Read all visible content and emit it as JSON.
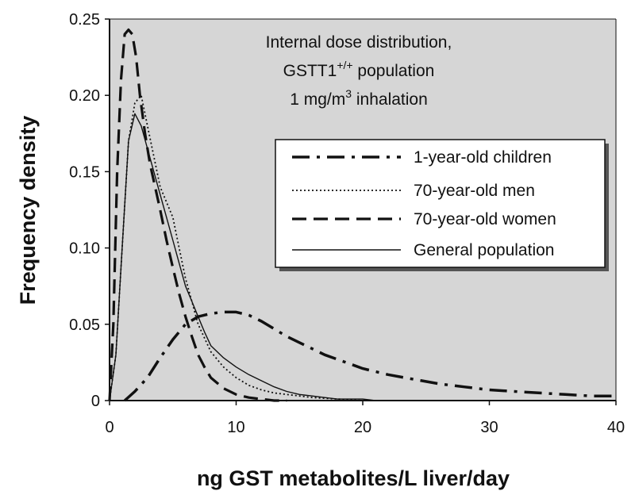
{
  "chart_data": {
    "type": "line",
    "annotation": {
      "line1": "Internal dose distribution,",
      "line2_base": "GSTT1",
      "line2_sup": "+/+",
      "line2_rest": " population",
      "line3_base": "1 mg/m",
      "line3_sup": "3",
      "line3_rest": " inhalation"
    },
    "xlabel": "ng GST metabolites/L liver/day",
    "ylabel": "Frequency density",
    "xlim": [
      0,
      40
    ],
    "ylim": [
      0,
      0.25
    ],
    "xticks": [
      0,
      10,
      20,
      30,
      40
    ],
    "xtick_labels": [
      "0",
      "10",
      "20",
      "30",
      "40"
    ],
    "yticks": [
      0,
      0.05,
      0.1,
      0.15,
      0.2,
      0.25
    ],
    "ytick_labels": [
      "0",
      "0.05",
      "0.10",
      "0.15",
      "0.20",
      "0.25"
    ],
    "legend_position": "right",
    "series": [
      {
        "name": "1-year-old children",
        "style": "dash-dot",
        "x": [
          1.2,
          2,
          3,
          4,
          5,
          6,
          7,
          8,
          9,
          10,
          11,
          12,
          13,
          14,
          15,
          16,
          17,
          18,
          19,
          20,
          22,
          24,
          26,
          28,
          30,
          32,
          34,
          36,
          38,
          40
        ],
        "y": [
          0.0,
          0.006,
          0.015,
          0.028,
          0.04,
          0.05,
          0.055,
          0.057,
          0.058,
          0.058,
          0.056,
          0.052,
          0.047,
          0.042,
          0.038,
          0.034,
          0.03,
          0.027,
          0.024,
          0.021,
          0.017,
          0.014,
          0.011,
          0.009,
          0.007,
          0.006,
          0.005,
          0.004,
          0.003,
          0.003
        ]
      },
      {
        "name": "70-year-old men",
        "style": "dotted",
        "x": [
          0,
          0.5,
          1,
          1.5,
          2,
          2.5,
          3,
          3.5,
          4,
          4.5,
          5,
          5.5,
          6,
          6.5,
          7,
          8,
          9,
          10,
          11,
          12,
          13,
          14,
          15,
          16,
          18,
          20
        ],
        "y": [
          0.0,
          0.03,
          0.1,
          0.17,
          0.195,
          0.2,
          0.18,
          0.16,
          0.14,
          0.13,
          0.12,
          0.1,
          0.08,
          0.065,
          0.05,
          0.032,
          0.022,
          0.015,
          0.01,
          0.007,
          0.005,
          0.004,
          0.003,
          0.002,
          0.001,
          0.0
        ]
      },
      {
        "name": "70-year-old women",
        "style": "dashed",
        "x": [
          0,
          0.3,
          0.6,
          0.9,
          1.2,
          1.5,
          1.8,
          2.1,
          2.4,
          2.8,
          3.2,
          3.6,
          4,
          4.5,
          5,
          5.5,
          6,
          6.5,
          7,
          7.5,
          8,
          9,
          10,
          11,
          12,
          13,
          14
        ],
        "y": [
          0.0,
          0.05,
          0.15,
          0.21,
          0.24,
          0.243,
          0.24,
          0.225,
          0.2,
          0.175,
          0.155,
          0.14,
          0.125,
          0.105,
          0.087,
          0.07,
          0.055,
          0.042,
          0.03,
          0.022,
          0.015,
          0.008,
          0.004,
          0.002,
          0.001,
          0.0,
          0.0
        ]
      },
      {
        "name": "General population",
        "style": "solid",
        "x": [
          0,
          0.5,
          1,
          1.5,
          2,
          2.5,
          3,
          3.5,
          4,
          4.5,
          5,
          5.5,
          6,
          6.5,
          7,
          7.5,
          8,
          9,
          10,
          11,
          12,
          13,
          14,
          15,
          16,
          17,
          18,
          19,
          20,
          21
        ],
        "y": [
          0.0,
          0.03,
          0.1,
          0.17,
          0.188,
          0.18,
          0.165,
          0.15,
          0.135,
          0.12,
          0.105,
          0.09,
          0.075,
          0.065,
          0.055,
          0.045,
          0.036,
          0.028,
          0.022,
          0.017,
          0.013,
          0.009,
          0.006,
          0.004,
          0.003,
          0.002,
          0.001,
          0.001,
          0.001,
          0.0
        ]
      }
    ]
  }
}
